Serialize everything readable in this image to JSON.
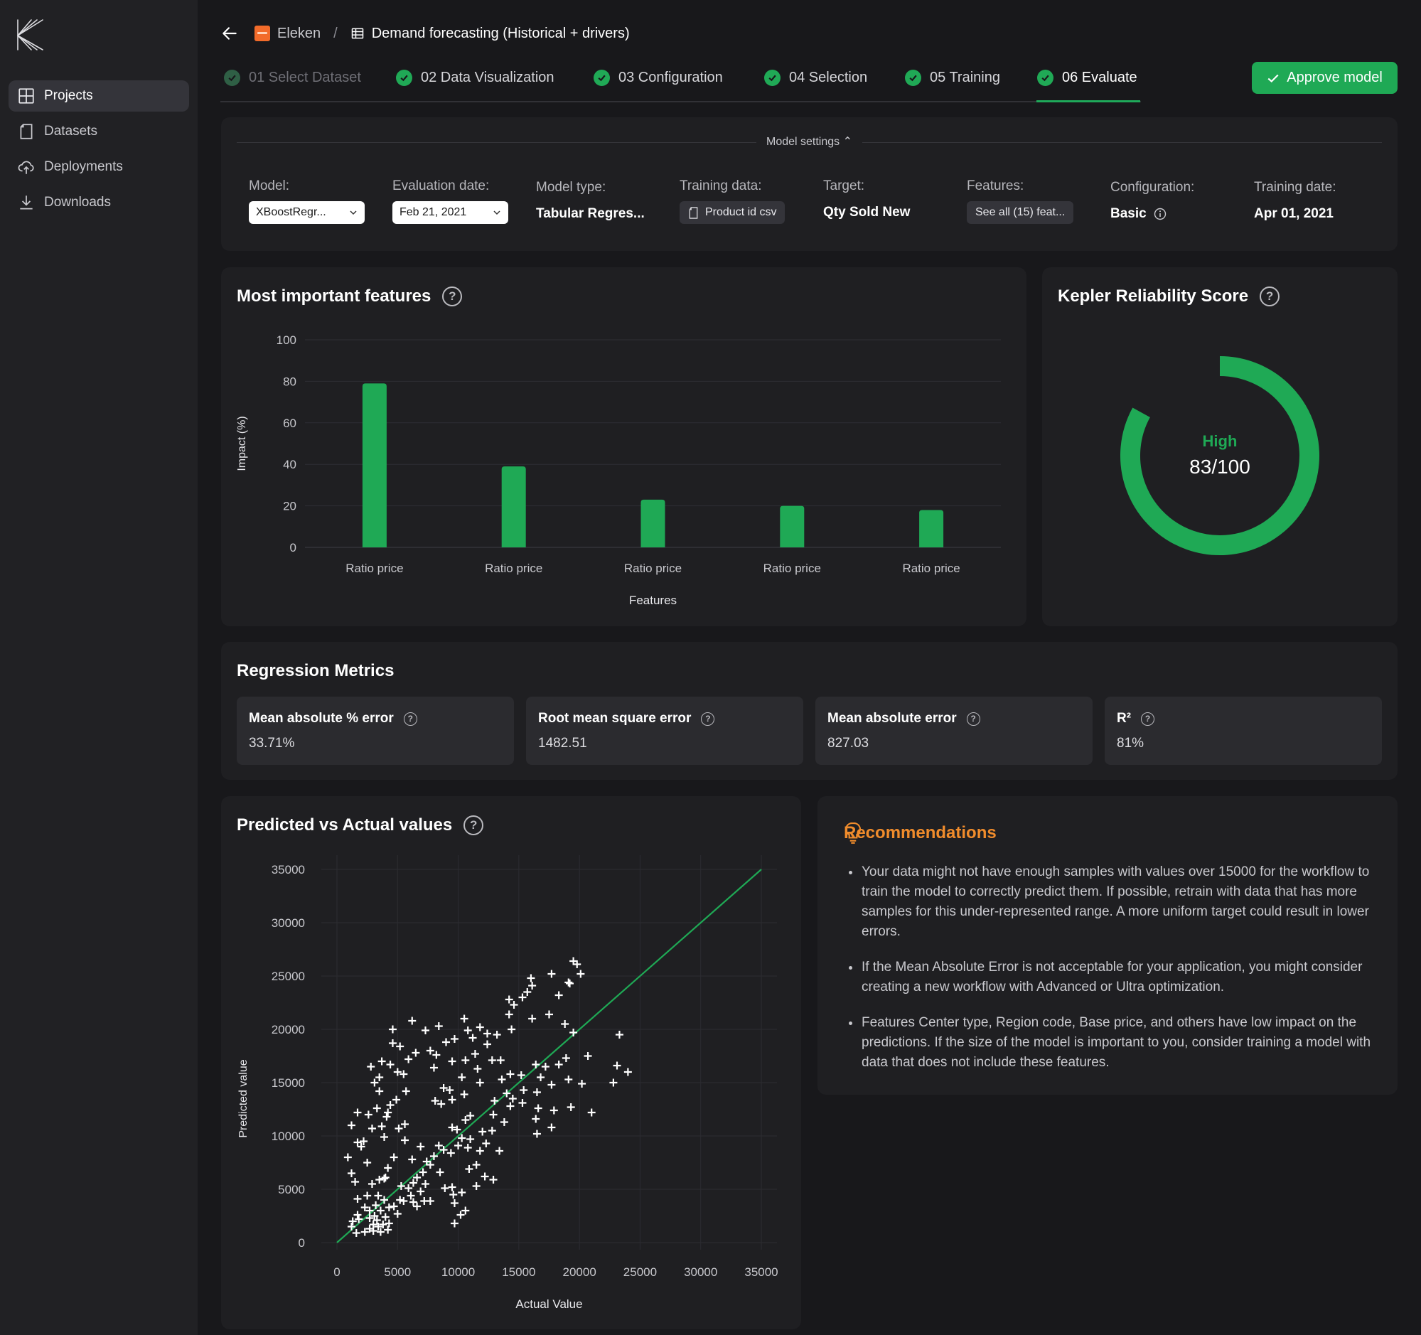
{
  "colors": {
    "accent": "#1fa955",
    "orange": "#f08c2c",
    "background": "#18181b",
    "card": "#1f1f22"
  },
  "sidebar": {
    "items": [
      {
        "label": "Projects",
        "icon": "grid-icon",
        "active": true
      },
      {
        "label": "Datasets",
        "icon": "document-icon"
      },
      {
        "label": "Deployments",
        "icon": "cloud-upload-icon"
      },
      {
        "label": "Downloads",
        "icon": "download-icon"
      }
    ]
  },
  "header": {
    "project": "Eleken",
    "separator": "/",
    "title": "Demand forecasting (Historical + drivers)"
  },
  "tabs": [
    {
      "label": "01 Select Dataset",
      "state": "done-dim"
    },
    {
      "label": "02 Data Visualization",
      "state": "done"
    },
    {
      "label": "03 Configuration",
      "state": "done"
    },
    {
      "label": "04 Selection",
      "state": "done"
    },
    {
      "label": "05 Training",
      "state": "done"
    },
    {
      "label": "06 Evaluate",
      "state": "active"
    }
  ],
  "approve_button": "Approve model",
  "settings": {
    "toggle": "Model settings",
    "model": {
      "label": "Model:",
      "value": "XBoostRegr..."
    },
    "eval_date": {
      "label": "Evaluation date:",
      "value": "Feb 21, 2021"
    },
    "model_type": {
      "label": "Model type:",
      "value": "Tabular Regres..."
    },
    "training_data": {
      "label": "Training data:",
      "value": "Product id csv"
    },
    "target": {
      "label": "Target:",
      "value": "Qty Sold New"
    },
    "features": {
      "label": "Features:",
      "value": "See all (15) feat..."
    },
    "configuration": {
      "label": "Configuration:",
      "value": "Basic"
    },
    "training_date": {
      "label": "Training date:",
      "value": "Apr 01, 2021"
    }
  },
  "features_card": {
    "title": "Most important features"
  },
  "reliability": {
    "title": "Kepler Reliability Score",
    "level": "High",
    "score_text": "83/100",
    "score": 83
  },
  "regression": {
    "title": "Regression Metrics",
    "metrics": [
      {
        "label": "Mean absolute % error",
        "value": "33.71%"
      },
      {
        "label": "Root mean square error",
        "value": "1482.51"
      },
      {
        "label": "Mean absolute error",
        "value": "827.03"
      },
      {
        "label": "R²",
        "value": "81%"
      }
    ]
  },
  "scatter_card": {
    "title": "Predicted vs Actual values"
  },
  "recommendations": {
    "title": "Recommendations",
    "items": [
      "Your data might not have enough samples with values over 15000 for the workflow to train the model to correctly predict them. If possible, retrain with data that has more samples for this under-represented range. A more uniform target could result in lower errors.",
      "If the Mean Absolute Error is not acceptable for your application, you might consider creating a new workflow with Advanced or Ultra optimization.",
      "Features Center type, Region code, Base price, and others have low impact on the predictions. If the size of the model is important to you, consider training a model with data that does not include these features."
    ]
  },
  "chart_data": [
    {
      "type": "bar",
      "title": "Most important features",
      "xlabel": "Features",
      "ylabel": "Impact (%)",
      "ylim": [
        0,
        100
      ],
      "yticks": [
        0,
        20,
        40,
        60,
        80,
        100
      ],
      "categories": [
        "Ratio price",
        "Ratio price",
        "Ratio price",
        "Ratio price",
        "Ratio price"
      ],
      "values": [
        79,
        39,
        23,
        20,
        18
      ],
      "color": "#1fa955",
      "grid": true
    },
    {
      "type": "scatter",
      "title": "Predicted vs Actual values",
      "xlabel": "Actual Value",
      "ylabel": "Predicted value",
      "xlim": [
        0,
        35000
      ],
      "ylim": [
        0,
        35000
      ],
      "xticks": [
        0,
        5000,
        10000,
        15000,
        20000,
        25000,
        30000,
        35000
      ],
      "yticks": [
        0,
        5000,
        10000,
        15000,
        20000,
        25000,
        30000,
        35000
      ],
      "reference_line": [
        [
          0,
          0
        ],
        [
          35000,
          35000
        ]
      ],
      "line_color": "#1fa955",
      "marker": "plus",
      "grid": true,
      "points": [
        [
          900,
          8000
        ],
        [
          1200,
          6500
        ],
        [
          1500,
          5700
        ],
        [
          1700,
          9400
        ],
        [
          2200,
          9500
        ],
        [
          2500,
          7500
        ],
        [
          1200,
          11000
        ],
        [
          1700,
          12200
        ],
        [
          2000,
          9000
        ],
        [
          2600,
          12000
        ],
        [
          2900,
          10700
        ],
        [
          3300,
          12600
        ],
        [
          3100,
          15000
        ],
        [
          2800,
          16500
        ],
        [
          3700,
          17000
        ],
        [
          3500,
          14200
        ],
        [
          4200,
          12200
        ],
        [
          3700,
          10900
        ],
        [
          3500,
          15500
        ],
        [
          4400,
          16700
        ],
        [
          4600,
          18700
        ],
        [
          4600,
          20000
        ],
        [
          5200,
          18400
        ],
        [
          5000,
          16000
        ],
        [
          5500,
          15800
        ],
        [
          5700,
          14200
        ],
        [
          5900,
          17200
        ],
        [
          6500,
          17800
        ],
        [
          6200,
          20800
        ],
        [
          7300,
          19900
        ],
        [
          7700,
          18000
        ],
        [
          8000,
          16400
        ],
        [
          8200,
          17600
        ],
        [
          8400,
          20300
        ],
        [
          9000,
          18800
        ],
        [
          9700,
          19100
        ],
        [
          9500,
          17000
        ],
        [
          10300,
          15500
        ],
        [
          10600,
          17100
        ],
        [
          11200,
          19200
        ],
        [
          11400,
          17700
        ],
        [
          11600,
          16300
        ],
        [
          11800,
          15000
        ],
        [
          10800,
          19900
        ],
        [
          10500,
          21000
        ],
        [
          11800,
          20200
        ],
        [
          12400,
          19600
        ],
        [
          12400,
          18600
        ],
        [
          12800,
          17100
        ],
        [
          13200,
          19500
        ],
        [
          13500,
          17100
        ],
        [
          14200,
          21400
        ],
        [
          14400,
          20000
        ],
        [
          14600,
          22300
        ],
        [
          15300,
          23000
        ],
        [
          14200,
          22800
        ],
        [
          15700,
          23500
        ],
        [
          16100,
          24100
        ],
        [
          16000,
          24800
        ],
        [
          17700,
          25200
        ],
        [
          17500,
          21400
        ],
        [
          16100,
          21000
        ],
        [
          19200,
          24300
        ],
        [
          18300,
          23200
        ],
        [
          19800,
          26100
        ],
        [
          19100,
          24400
        ],
        [
          19500,
          26400
        ],
        [
          20100,
          25200
        ],
        [
          18800,
          20500
        ],
        [
          19500,
          19700
        ],
        [
          18900,
          17300
        ],
        [
          19100,
          15300
        ],
        [
          18300,
          16700
        ],
        [
          16800,
          15500
        ],
        [
          16400,
          16700
        ],
        [
          17200,
          16500
        ],
        [
          17700,
          14800
        ],
        [
          15200,
          15700
        ],
        [
          15400,
          14300
        ],
        [
          16500,
          14100
        ],
        [
          15300,
          13100
        ],
        [
          14300,
          15800
        ],
        [
          13600,
          15300
        ],
        [
          14000,
          14000
        ],
        [
          14300,
          12800
        ],
        [
          14500,
          13500
        ],
        [
          13000,
          13300
        ],
        [
          12900,
          12000
        ],
        [
          13800,
          11300
        ],
        [
          12800,
          10500
        ],
        [
          12000,
          10400
        ],
        [
          10600,
          11500
        ],
        [
          10500,
          13900
        ],
        [
          9300,
          14300
        ],
        [
          8800,
          14500
        ],
        [
          8100,
          13300
        ],
        [
          8600,
          13000
        ],
        [
          9500,
          13400
        ],
        [
          9900,
          10600
        ],
        [
          10000,
          9100
        ],
        [
          11000,
          11900
        ],
        [
          11000,
          9700
        ],
        [
          11800,
          8600
        ],
        [
          11500,
          7300
        ],
        [
          10800,
          8900
        ],
        [
          10300,
          9800
        ],
        [
          9400,
          8400
        ],
        [
          8800,
          8700
        ],
        [
          8000,
          8100
        ],
        [
          7400,
          7600
        ],
        [
          7100,
          6600
        ],
        [
          6600,
          6100
        ],
        [
          6200,
          7800
        ],
        [
          6900,
          4800
        ],
        [
          7200,
          3900
        ],
        [
          7700,
          3900
        ],
        [
          7300,
          5500
        ],
        [
          7700,
          7300
        ],
        [
          8500,
          6600
        ],
        [
          8900,
          5100
        ],
        [
          9500,
          5200
        ],
        [
          9600,
          4500
        ],
        [
          10300,
          4700
        ],
        [
          9700,
          3700
        ],
        [
          10600,
          3000
        ],
        [
          10200,
          2600
        ],
        [
          9700,
          1800
        ],
        [
          12900,
          5900
        ],
        [
          11500,
          5300
        ],
        [
          10900,
          6900
        ],
        [
          12200,
          6200
        ],
        [
          12300,
          9300
        ],
        [
          13400,
          8600
        ],
        [
          9500,
          10800
        ],
        [
          8400,
          9100
        ],
        [
          6900,
          9000
        ],
        [
          5600,
          9600
        ],
        [
          5100,
          10700
        ],
        [
          4100,
          11800
        ],
        [
          3900,
          9900
        ],
        [
          4400,
          12900
        ],
        [
          4900,
          13400
        ],
        [
          5600,
          11100
        ],
        [
          4700,
          8000
        ],
        [
          4200,
          7000
        ],
        [
          3900,
          6000
        ],
        [
          3400,
          4400
        ],
        [
          3200,
          3500
        ],
        [
          2500,
          4400
        ],
        [
          2300,
          3300
        ],
        [
          1700,
          4100
        ],
        [
          1700,
          2600
        ],
        [
          1300,
          2000
        ],
        [
          1200,
          1500
        ],
        [
          1600,
          900
        ],
        [
          1800,
          2200
        ],
        [
          2300,
          1000
        ],
        [
          2700,
          1300
        ],
        [
          3000,
          1700
        ],
        [
          3300,
          2100
        ],
        [
          3600,
          1000
        ],
        [
          3800,
          1700
        ],
        [
          4200,
          1200
        ],
        [
          4300,
          1800
        ],
        [
          4000,
          2400
        ],
        [
          3600,
          3000
        ],
        [
          3100,
          2500
        ],
        [
          2700,
          3000
        ],
        [
          2700,
          2300
        ],
        [
          3000,
          1100
        ],
        [
          3400,
          1500
        ],
        [
          3900,
          4000
        ],
        [
          4300,
          3300
        ],
        [
          4700,
          3400
        ],
        [
          5000,
          2700
        ],
        [
          5200,
          4000
        ],
        [
          5500,
          3900
        ],
        [
          5300,
          5300
        ],
        [
          5900,
          5100
        ],
        [
          6300,
          5600
        ],
        [
          6300,
          3800
        ],
        [
          6600,
          3400
        ],
        [
          6100,
          4400
        ],
        [
          2900,
          5500
        ],
        [
          3500,
          5900
        ],
        [
          4000,
          6100
        ],
        [
          20700,
          17500
        ],
        [
          21000,
          12200
        ],
        [
          23100,
          16600
        ],
        [
          23300,
          19500
        ],
        [
          24000,
          16000
        ],
        [
          22800,
          15000
        ],
        [
          20200,
          14900
        ],
        [
          19300,
          12700
        ],
        [
          17900,
          12400
        ],
        [
          17700,
          10800
        ],
        [
          16500,
          10200
        ],
        [
          16400,
          11600
        ],
        [
          16600,
          12600
        ]
      ]
    }
  ]
}
